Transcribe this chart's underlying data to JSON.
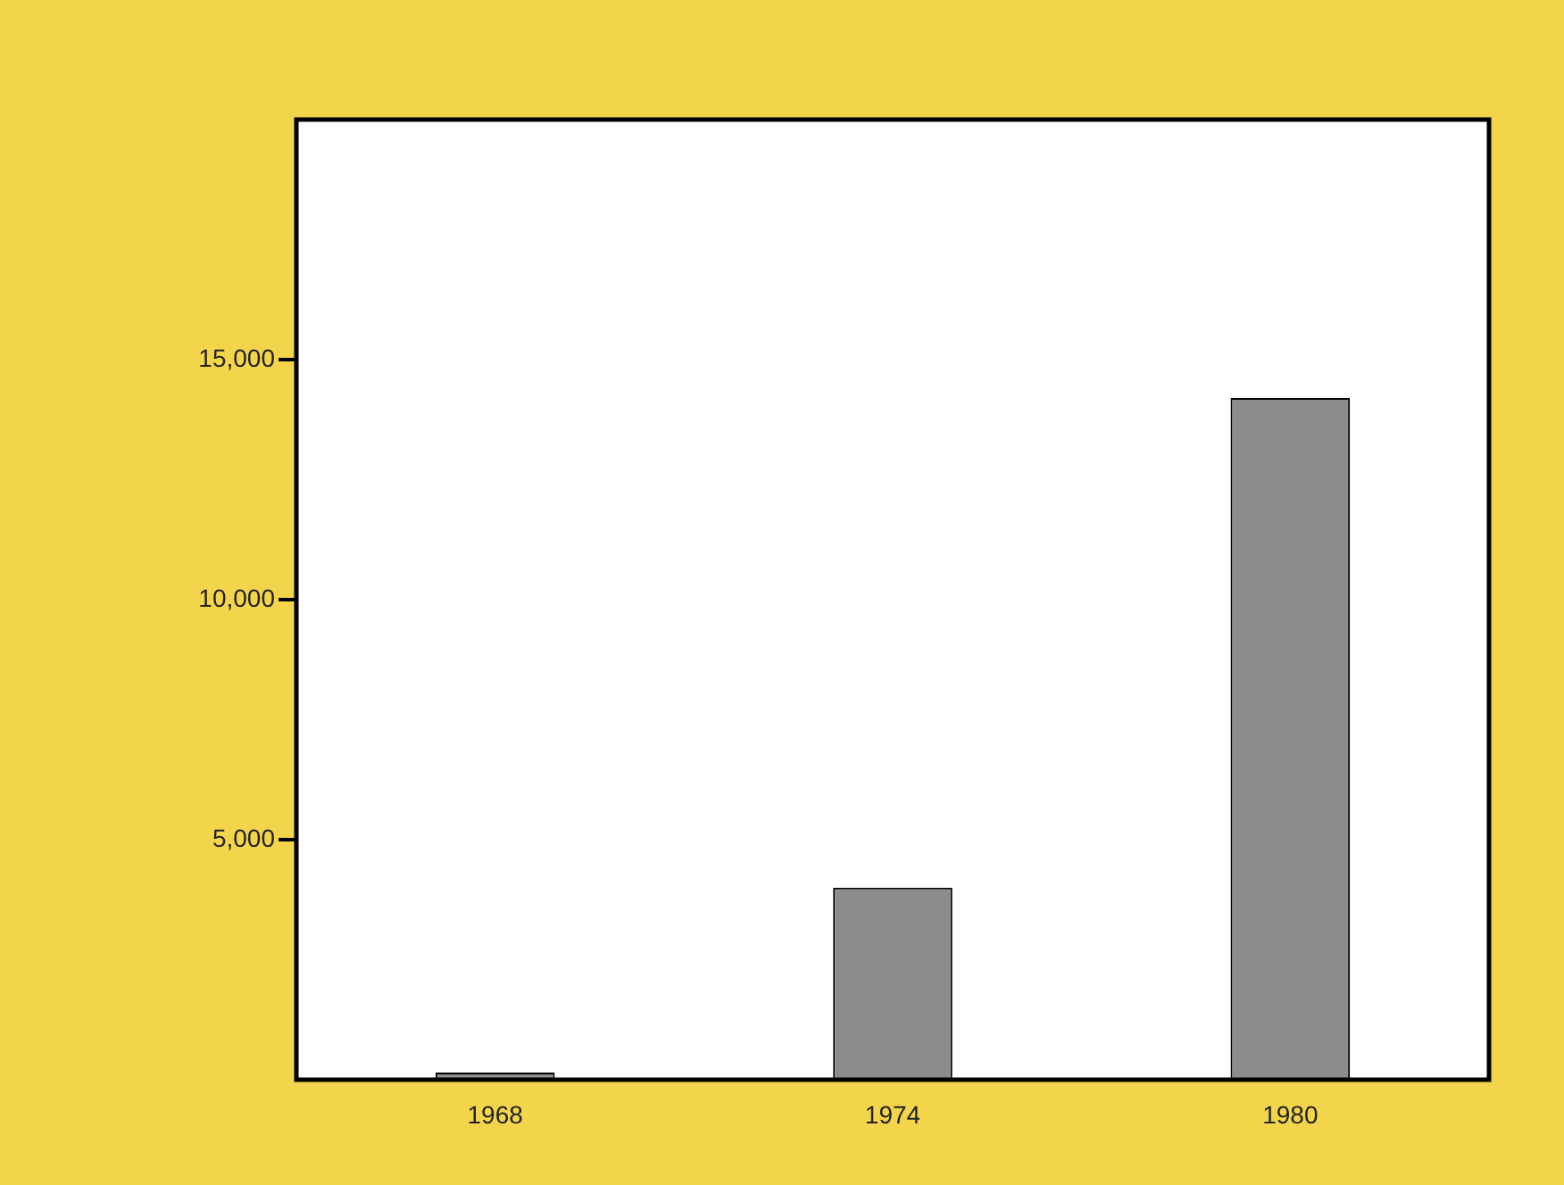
{
  "chart_data": {
    "type": "bar",
    "categories": [
      "1968",
      "1974",
      "1980"
    ],
    "values": [
      150,
      4000,
      14200
    ],
    "color": "#8c8c8c",
    "ylim": [
      0,
      20000
    ],
    "yticks": [
      {
        "value": 5000,
        "label": "5,000"
      },
      {
        "value": 10000,
        "label": "10,000"
      },
      {
        "value": 15000,
        "label": "15,000"
      }
    ],
    "grid": false,
    "legend": false
  }
}
